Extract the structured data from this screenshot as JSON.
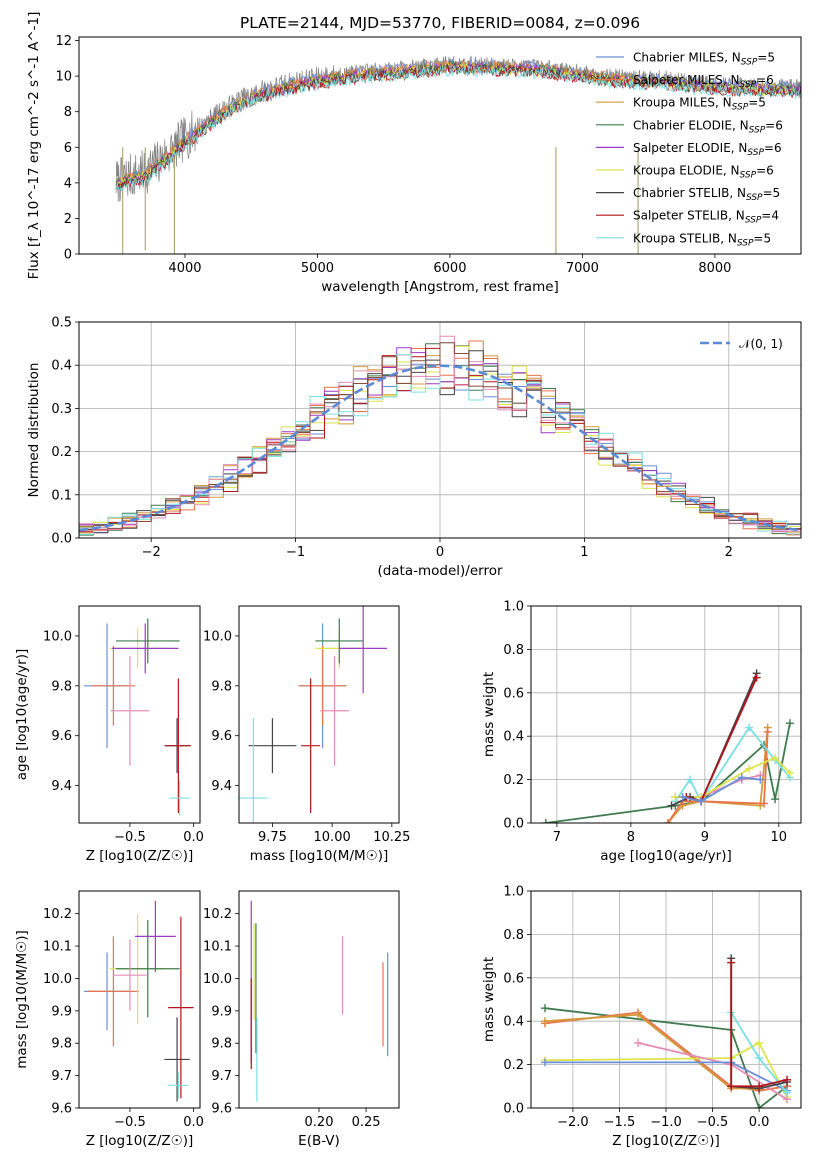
{
  "chart_data": [
    {
      "type": "line",
      "title": "PLATE=2144, MJD=53770, FIBERID=0084, z=0.096",
      "xlabel": "wavelength [Angstrom, rest frame]",
      "ylabel": "Flux [f_λ 10^-17 erg cm^-2 s^-1 A^-1]",
      "xlim": [
        3200,
        8650
      ],
      "ylim": [
        0,
        12.2
      ],
      "xticks": [
        "4000",
        "5000",
        "6000",
        "7000",
        "8000"
      ],
      "yticks": [
        "0",
        "2",
        "4",
        "6",
        "8",
        "10",
        "12"
      ],
      "continuum": [
        [
          3500,
          4.1
        ],
        [
          3550,
          4.3
        ],
        [
          3700,
          4.6
        ],
        [
          3800,
          5.2
        ],
        [
          3900,
          5.8
        ],
        [
          4000,
          6.5
        ],
        [
          4200,
          7.6
        ],
        [
          4400,
          8.6
        ],
        [
          4600,
          9.2
        ],
        [
          4800,
          9.6
        ],
        [
          5000,
          9.9
        ],
        [
          5200,
          10.1
        ],
        [
          5400,
          10.3
        ],
        [
          5600,
          10.4
        ],
        [
          5800,
          10.55
        ],
        [
          6000,
          10.7
        ],
        [
          6200,
          10.65
        ],
        [
          6400,
          10.6
        ],
        [
          6600,
          10.55
        ],
        [
          6800,
          10.4
        ],
        [
          7000,
          10.2
        ],
        [
          7200,
          10.0
        ],
        [
          7400,
          9.9
        ],
        [
          7600,
          9.9
        ],
        [
          7800,
          9.7
        ],
        [
          8000,
          9.55
        ],
        [
          8200,
          9.5
        ],
        [
          8400,
          9.45
        ],
        [
          8650,
          9.4
        ]
      ],
      "series": [
        {
          "name": "Chabrier MILES, N_SSP=5",
          "color": "#6b8fd8"
        },
        {
          "name": "Salpeter MILES, N_SSP=6",
          "color": "#e8744a"
        },
        {
          "name": "Kroupa MILES, N_SSP=5",
          "color": "#d39a3a"
        },
        {
          "name": "Chabrier ELODIE, N_SSP=6",
          "color": "#3f7a4e"
        },
        {
          "name": "Salpeter ELODIE, N_SSP=6",
          "color": "#9b3bc4"
        },
        {
          "name": "Kroupa ELODIE, N_SSP=6",
          "color": "#dde44c"
        },
        {
          "name": "Chabrier STELIB, N_SSP=5",
          "color": "#444444"
        },
        {
          "name": "Salpeter STELIB, N_SSP=4",
          "color": "#b3141c"
        },
        {
          "name": "Kroupa STELIB, N_SSP=5",
          "color": "#7adfe4"
        }
      ]
    },
    {
      "type": "line",
      "xlabel": "(data-model)/error",
      "ylabel": "Normed distribution",
      "xlim": [
        -2.5,
        2.5
      ],
      "ylim": [
        0,
        0.5
      ],
      "xticks": [
        "−2",
        "−1",
        "0",
        "1",
        "2"
      ],
      "yticks": [
        "0.0",
        "0.1",
        "0.2",
        "0.3",
        "0.4",
        "0.5"
      ],
      "grid": true,
      "legend": "top-right",
      "reference_curve": "𝒩(0, 1)",
      "histogram_colors": [
        "#6b8fd8",
        "#e8744a",
        "#d39a3a",
        "#3f7a4e",
        "#9b3bc4",
        "#dde44c",
        "#444444",
        "#b3141c",
        "#7adfe4",
        "#e68db5",
        "#8c4a3a"
      ]
    },
    {
      "type": "scatter",
      "xlabel": "Z [log10(Z/Z☉)]",
      "ylabel": "age  [log10(age/yr)]",
      "xlim": [
        -0.9,
        0.05
      ],
      "ylim": [
        9.25,
        10.12
      ],
      "xticks": [
        "−0.5",
        "0.0"
      ],
      "yticks": [
        "9.4",
        "9.6",
        "9.8",
        "10.0"
      ],
      "points": [
        {
          "x": -0.68,
          "y": 9.8,
          "xerr": 0.18,
          "yerr": 0.25,
          "color": "#6b8fd8"
        },
        {
          "x": -0.63,
          "y": 9.8,
          "xerr": 0.17,
          "yerr": 0.16,
          "color": "#e8744a"
        },
        {
          "x": -0.44,
          "y": 9.95,
          "xerr": 0.22,
          "yerr": 0.08,
          "color": "#dde44c"
        },
        {
          "x": -0.36,
          "y": 9.98,
          "xerr": 0.25,
          "yerr": 0.09,
          "color": "#3f7a4e"
        },
        {
          "x": -0.38,
          "y": 9.95,
          "xerr": 0.26,
          "yerr": 0.1,
          "color": "#9b3bc4"
        },
        {
          "x": -0.5,
          "y": 9.7,
          "xerr": 0.15,
          "yerr": 0.22,
          "color": "#e68db5"
        },
        {
          "x": -0.13,
          "y": 9.56,
          "xerr": 0.1,
          "yerr": 0.11,
          "color": "#444444"
        },
        {
          "x": -0.12,
          "y": 9.56,
          "xerr": 0.1,
          "yerr": 0.27,
          "color": "#b3141c"
        },
        {
          "x": -0.11,
          "y": 9.35,
          "xerr": 0.08,
          "yerr": 0.07,
          "color": "#7adfe4"
        }
      ]
    },
    {
      "type": "scatter",
      "xlabel": "mass [log10(M/M☉)]",
      "ylabel": "",
      "xlim": [
        9.61,
        10.28
      ],
      "ylim": [
        9.25,
        10.12
      ],
      "xticks": [
        "9.75",
        "10.00",
        "10.25"
      ],
      "yticks": [
        "9.4",
        "9.6",
        "9.8",
        "10.0"
      ],
      "points": [
        {
          "x": 9.96,
          "y": 9.8,
          "xerr": 0.1,
          "yerr": 0.25,
          "color": "#6b8fd8"
        },
        {
          "x": 9.96,
          "y": 9.8,
          "xerr": 0.1,
          "yerr": 0.16,
          "color": "#e8744a"
        },
        {
          "x": 10.03,
          "y": 9.95,
          "xerr": 0.1,
          "yerr": 0.08,
          "color": "#dde44c"
        },
        {
          "x": 10.03,
          "y": 9.98,
          "xerr": 0.1,
          "yerr": 0.09,
          "color": "#3f7a4e"
        },
        {
          "x": 10.13,
          "y": 9.95,
          "xerr": 0.1,
          "yerr": 0.18,
          "color": "#9b3bc4"
        },
        {
          "x": 10.01,
          "y": 9.7,
          "xerr": 0.06,
          "yerr": 0.22,
          "color": "#e68db5"
        },
        {
          "x": 9.75,
          "y": 9.56,
          "xerr": 0.1,
          "yerr": 0.11,
          "color": "#444444"
        },
        {
          "x": 9.91,
          "y": 9.56,
          "xerr": 0.04,
          "yerr": 0.27,
          "color": "#b3141c"
        },
        {
          "x": 9.67,
          "y": 9.35,
          "xerr": 0.06,
          "yerr": 0.32,
          "color": "#7adfe4"
        }
      ]
    },
    {
      "type": "line",
      "xlabel": "age  [log10(age/yr)]",
      "ylabel": "mass weight",
      "xlim": [
        6.65,
        10.3
      ],
      "ylim": [
        0,
        1.0
      ],
      "xticks": [
        "7",
        "8",
        "9",
        "10"
      ],
      "yticks": [
        "0.0",
        "0.2",
        "0.4",
        "0.6",
        "0.8",
        "1.0"
      ],
      "grid": true,
      "series": [
        {
          "color": "#3f7a4e",
          "points": [
            [
              6.85,
              0.0
            ],
            [
              8.6,
              0.08
            ],
            [
              8.95,
              0.1
            ],
            [
              9.8,
              0.36
            ],
            [
              9.95,
              0.11
            ],
            [
              10.15,
              0.46
            ]
          ]
        },
        {
          "color": "#d39a3a",
          "points": [
            [
              8.5,
              0.0
            ],
            [
              8.7,
              0.08
            ],
            [
              8.95,
              0.1
            ],
            [
              9.75,
              0.08
            ],
            [
              9.85,
              0.44
            ]
          ]
        },
        {
          "color": "#e8744a",
          "points": [
            [
              8.5,
              0.0
            ],
            [
              8.7,
              0.1
            ],
            [
              8.95,
              0.1
            ],
            [
              9.8,
              0.09
            ],
            [
              9.85,
              0.42
            ]
          ]
        },
        {
          "color": "#7adfe4",
          "points": [
            [
              8.6,
              0.1
            ],
            [
              8.8,
              0.2
            ],
            [
              8.95,
              0.1
            ],
            [
              9.6,
              0.44
            ],
            [
              9.95,
              0.29
            ],
            [
              10.15,
              0.21
            ]
          ]
        },
        {
          "color": "#e68db5",
          "points": [
            [
              8.6,
              0.12
            ],
            [
              8.95,
              0.12
            ],
            [
              9.5,
              0.2
            ],
            [
              9.75,
              0.22
            ]
          ]
        },
        {
          "color": "#dde44c",
          "points": [
            [
              8.6,
              0.12
            ],
            [
              8.95,
              0.12
            ],
            [
              9.6,
              0.25
            ],
            [
              9.95,
              0.3
            ],
            [
              10.15,
              0.23
            ]
          ]
        },
        {
          "color": "#444444",
          "points": [
            [
              8.55,
              0.08
            ],
            [
              8.8,
              0.12
            ],
            [
              8.95,
              0.1
            ],
            [
              9.7,
              0.69
            ]
          ]
        },
        {
          "color": "#b3141c",
          "points": [
            [
              8.75,
              0.12
            ],
            [
              8.95,
              0.1
            ],
            [
              9.7,
              0.67
            ]
          ]
        },
        {
          "color": "#6b8fd8",
          "points": [
            [
              8.7,
              0.12
            ],
            [
              8.95,
              0.1
            ],
            [
              9.5,
              0.21
            ],
            [
              9.75,
              0.2
            ]
          ]
        }
      ]
    },
    {
      "type": "scatter",
      "xlabel": "Z [log10(Z/Z☉)]",
      "ylabel": "mass [log10(M/M☉)]",
      "xlim": [
        -0.9,
        0.05
      ],
      "ylim": [
        9.6,
        10.27
      ],
      "xticks": [
        "−0.5",
        "0.0"
      ],
      "yticks": [
        "9.6",
        "9.7",
        "9.8",
        "9.9",
        "10.0",
        "10.1",
        "10.2"
      ],
      "points": [
        {
          "x": -0.68,
          "y": 9.96,
          "xerr": 0.18,
          "yerr": 0.12,
          "color": "#6b8fd8"
        },
        {
          "x": -0.63,
          "y": 9.96,
          "xerr": 0.2,
          "yerr": 0.17,
          "color": "#e8744a"
        },
        {
          "x": -0.44,
          "y": 10.03,
          "xerr": 0.22,
          "yerr": 0.17,
          "color": "#dde44c"
        },
        {
          "x": -0.36,
          "y": 10.03,
          "xerr": 0.25,
          "yerr": 0.15,
          "color": "#3f7a4e"
        },
        {
          "x": -0.3,
          "y": 10.13,
          "xerr": 0.16,
          "yerr": 0.11,
          "color": "#9b3bc4"
        },
        {
          "x": -0.5,
          "y": 10.01,
          "xerr": 0.13,
          "yerr": 0.11,
          "color": "#e68db5"
        },
        {
          "x": -0.13,
          "y": 9.75,
          "xerr": 0.1,
          "yerr": 0.13,
          "color": "#444444"
        },
        {
          "x": -0.1,
          "y": 9.91,
          "xerr": 0.1,
          "yerr": 0.28,
          "color": "#b3141c"
        },
        {
          "x": -0.12,
          "y": 9.67,
          "xerr": 0.08,
          "yerr": 0.04,
          "color": "#7adfe4"
        }
      ]
    },
    {
      "type": "scatter",
      "xlabel": "E(B-V)",
      "ylabel": "",
      "xlim": [
        0.115,
        0.285
      ],
      "ylim": [
        9.6,
        10.27
      ],
      "xticks": [
        "0.20",
        "0.25"
      ],
      "yticks": [
        "9.6",
        "9.7",
        "9.8",
        "9.9",
        "10.0",
        "10.1",
        "10.2"
      ],
      "points": [
        {
          "x": 0.128,
          "y": 9.99,
          "yerr": 0.25,
          "color": "#9b3bc4"
        },
        {
          "x": 0.131,
          "y": 10.02,
          "yerr": 0.15,
          "color": "#dde44c"
        },
        {
          "x": 0.133,
          "y": 9.97,
          "yerr": 0.2,
          "color": "#3f7a4e"
        },
        {
          "x": 0.128,
          "y": 9.86,
          "yerr": 0.14,
          "color": "#b3141c"
        },
        {
          "x": 0.134,
          "y": 9.75,
          "yerr": 0.13,
          "color": "#7adfe4"
        },
        {
          "x": 0.225,
          "y": 10.01,
          "yerr": 0.12,
          "color": "#e68db5"
        },
        {
          "x": 0.268,
          "y": 9.92,
          "yerr": 0.13,
          "color": "#e8744a"
        },
        {
          "x": 0.273,
          "y": 9.92,
          "yerr": 0.16,
          "color": "#6b8fd8"
        }
      ]
    },
    {
      "type": "line",
      "xlabel": "Z [log10(Z/Z☉)]",
      "ylabel": "mass weight",
      "xlim": [
        -2.45,
        0.45
      ],
      "ylim": [
        0,
        1.0
      ],
      "xticks": [
        "−2.0",
        "−1.5",
        "−1.0",
        "−0.5",
        "0.0"
      ],
      "yticks": [
        "0.0",
        "0.2",
        "0.4",
        "0.6",
        "0.8",
        "1.0"
      ],
      "grid": true,
      "series": [
        {
          "color": "#3f7a4e",
          "points": [
            [
              -2.3,
              0.46
            ],
            [
              -0.3,
              0.36
            ],
            [
              0.0,
              0.0
            ],
            [
              0.3,
              0.1
            ]
          ]
        },
        {
          "color": "#e8744a",
          "points": [
            [
              -2.3,
              0.39
            ],
            [
              -1.3,
              0.44
            ],
            [
              -0.3,
              0.1
            ],
            [
              0.0,
              0.08
            ],
            [
              0.3,
              0.1
            ]
          ]
        },
        {
          "color": "#d39a3a",
          "points": [
            [
              -2.3,
              0.4
            ],
            [
              -1.3,
              0.43
            ],
            [
              -0.3,
              0.09
            ],
            [
              0.0,
              0.09
            ]
          ]
        },
        {
          "color": "#dde44c",
          "points": [
            [
              -2.3,
              0.22
            ],
            [
              -0.3,
              0.23
            ],
            [
              0.0,
              0.3
            ],
            [
              0.3,
              0.05
            ]
          ]
        },
        {
          "color": "#e68db5",
          "points": [
            [
              -1.3,
              0.3
            ],
            [
              -0.3,
              0.2
            ],
            [
              0.3,
              0.04
            ]
          ]
        },
        {
          "color": "#6b8fd8",
          "points": [
            [
              -2.3,
              0.21
            ],
            [
              -0.3,
              0.21
            ],
            [
              0.3,
              0.08
            ]
          ]
        },
        {
          "color": "#7adfe4",
          "points": [
            [
              -0.3,
              0.44
            ],
            [
              0.0,
              0.23
            ],
            [
              0.3,
              0.07
            ]
          ]
        },
        {
          "color": "#444444",
          "points": [
            [
              -0.3,
              0.69
            ],
            [
              -0.3,
              0.1
            ],
            [
              0.0,
              0.09
            ],
            [
              0.3,
              0.12
            ]
          ]
        },
        {
          "color": "#b3141c",
          "points": [
            [
              -0.3,
              0.67
            ],
            [
              -0.3,
              0.1
            ],
            [
              0.0,
              0.1
            ],
            [
              0.3,
              0.13
            ]
          ]
        }
      ]
    }
  ]
}
